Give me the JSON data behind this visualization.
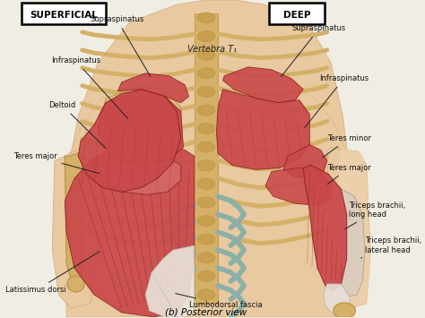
{
  "bg_color": "#f0ede5",
  "body_color": "#e8c9a0",
  "body_shadow": "#d4a878",
  "muscle_red": "#c9484a",
  "muscle_mid_red": "#d4686a",
  "muscle_light_red": "#e8a0a0",
  "bone_color": "#d4b068",
  "bone_dark": "#b89040",
  "fascia_color": "#8ab0a8",
  "fascia_light": "#a8c8c0",
  "white_tendon": "#e8e0d8",
  "title": "(b) Posterior view",
  "left_box_label": "SUPERFICIAL",
  "right_box_label": "DEEP",
  "center_label": "Vertebra T₁"
}
